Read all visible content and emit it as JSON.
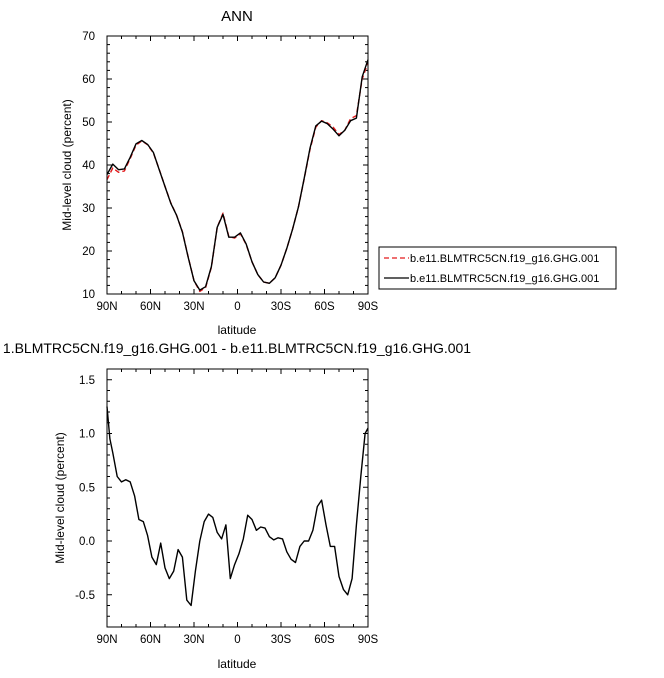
{
  "chart_data": [
    {
      "type": "line",
      "title": "ANN",
      "xlabel": "latitude",
      "ylabel": "Mid-level cloud (percent)",
      "xlim": [
        90,
        -90
      ],
      "ylim": [
        10,
        70
      ],
      "x_ticks": [
        90,
        60,
        30,
        0,
        -30,
        -60,
        -90
      ],
      "x_tick_labels": [
        "90N",
        "60N",
        "30N",
        "0",
        "30S",
        "60S",
        "90S"
      ],
      "y_ticks": [
        10,
        20,
        30,
        40,
        50,
        60,
        70
      ],
      "y_tick_labels": [
        "10",
        "20",
        "30",
        "40",
        "50",
        "60",
        "70"
      ],
      "legend_position": "right",
      "grid": false,
      "x": [
        90,
        86,
        82,
        78,
        74,
        70,
        66,
        62,
        58,
        54,
        50,
        46,
        42,
        38,
        34,
        30,
        26,
        22,
        18,
        14,
        10,
        6,
        2,
        -2,
        -6,
        -10,
        -14,
        -18,
        -22,
        -26,
        -30,
        -34,
        -38,
        -42,
        -46,
        -50,
        -54,
        -58,
        -62,
        -66,
        -70,
        -74,
        -78,
        -82,
        -86,
        -90
      ],
      "series": [
        {
          "name": "b.e11.BLMTRC5CN.f19_g16.GHG.001",
          "color": "#e31a1c",
          "dash": "dashed",
          "values": [
            36.6,
            39.3,
            38.3,
            38.6,
            41.5,
            44.6,
            45.6,
            44.7,
            42.8,
            39.0,
            35.0,
            31.2,
            28.3,
            24.5,
            18.6,
            13.1,
            10.6,
            11.5,
            16.2,
            25.5,
            28.8,
            23.4,
            23.0,
            24.0,
            21.5,
            17.5,
            14.5,
            12.8,
            12.5,
            13.8,
            16.7,
            20.6,
            25.1,
            30.2,
            36.8,
            43.6,
            48.8,
            50.3,
            49.8,
            48.8,
            47.1,
            48.1,
            50.8,
            51.5,
            60.0,
            63.8
          ]
        },
        {
          "name": "b.e11.BLMTRC5CN.f19_g16.GHG.001",
          "color": "#000000",
          "dash": "solid",
          "values": [
            37.8,
            40.2,
            38.9,
            39.1,
            41.8,
            44.9,
            45.7,
            44.8,
            42.9,
            38.9,
            35.0,
            31.1,
            28.3,
            24.4,
            18.5,
            13.1,
            10.9,
            11.7,
            16.4,
            25.5,
            28.5,
            23.2,
            23.2,
            24.2,
            21.6,
            17.5,
            14.5,
            12.8,
            12.5,
            13.8,
            16.7,
            20.6,
            25.1,
            30.2,
            36.9,
            43.9,
            49.1,
            50.2,
            49.6,
            48.3,
            46.8,
            48.1,
            50.3,
            50.9,
            60.5,
            64.5
          ]
        }
      ]
    },
    {
      "type": "line",
      "title": "1.BLMTRC5CN.f19_g16.GHG.001 - b.e11.BLMTRC5CN.f19_g16.GHG.001",
      "xlabel": "latitude",
      "ylabel": "Mid-level cloud (percent)",
      "xlim": [
        90,
        -90
      ],
      "ylim": [
        -0.8,
        1.6
      ],
      "x_ticks": [
        90,
        60,
        30,
        0,
        -30,
        -60,
        -90
      ],
      "x_tick_labels": [
        "90N",
        "60N",
        "30N",
        "0",
        "30S",
        "60S",
        "90S"
      ],
      "y_ticks": [
        -0.5,
        0.0,
        0.5,
        1.0,
        1.5
      ],
      "y_tick_labels": [
        "-0.5",
        "0.0",
        "0.5",
        "1.0",
        "1.5"
      ],
      "grid": false,
      "x": [
        90,
        88,
        86,
        83,
        80,
        77,
        74,
        71,
        68,
        65,
        62,
        59,
        56,
        53,
        50,
        47,
        44,
        41,
        38,
        35,
        32,
        29,
        26,
        23,
        20,
        17,
        14,
        11,
        8,
        5,
        2,
        -1,
        -4,
        -7,
        -10,
        -13,
        -16,
        -19,
        -22,
        -25,
        -28,
        -31,
        -34,
        -37,
        -40,
        -43,
        -46,
        -49,
        -52,
        -55,
        -58,
        -61,
        -64,
        -67,
        -70,
        -73,
        -76,
        -79,
        -82,
        -85,
        -88,
        -90
      ],
      "series": [
        {
          "color": "#000000",
          "dash": "solid",
          "values": [
            1.25,
            0.95,
            0.82,
            0.6,
            0.55,
            0.57,
            0.55,
            0.42,
            0.2,
            0.18,
            0.05,
            -0.15,
            -0.22,
            -0.02,
            -0.25,
            -0.35,
            -0.28,
            -0.08,
            -0.15,
            -0.55,
            -0.6,
            -0.28,
            0.0,
            0.18,
            0.25,
            0.22,
            0.08,
            0.02,
            0.15,
            -0.35,
            -0.22,
            -0.12,
            0.02,
            0.24,
            0.2,
            0.1,
            0.13,
            0.12,
            0.04,
            0.01,
            0.03,
            0.02,
            -0.1,
            -0.17,
            -0.2,
            -0.05,
            0.0,
            0.0,
            0.1,
            0.32,
            0.38,
            0.15,
            -0.05,
            -0.05,
            -0.33,
            -0.45,
            -0.5,
            -0.35,
            0.15,
            0.6,
            1.0,
            1.05
          ]
        }
      ]
    }
  ]
}
